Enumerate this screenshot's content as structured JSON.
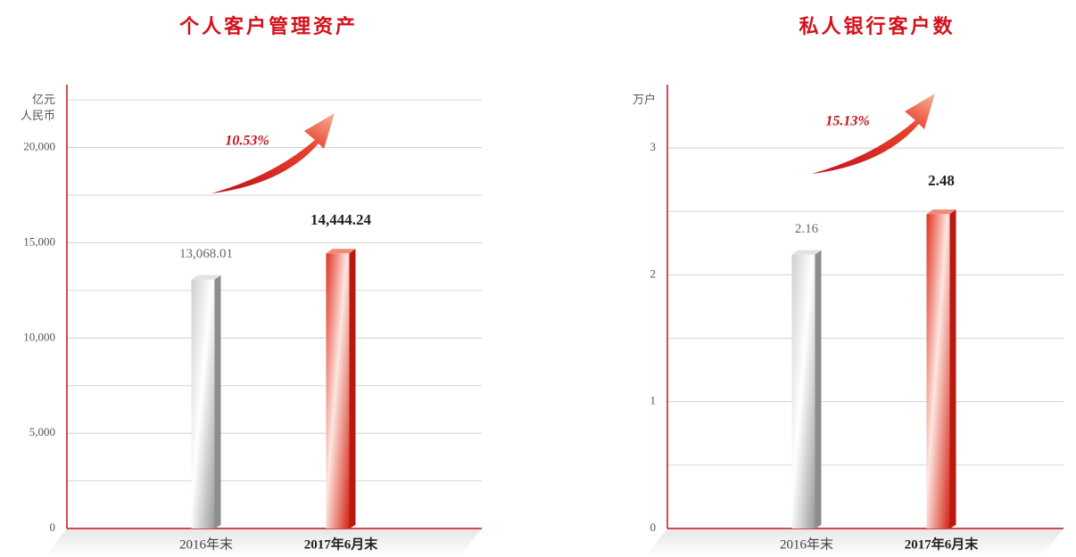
{
  "chart_data": [
    {
      "type": "bar",
      "title": "个人客户管理资产",
      "ylabel": [
        "亿元",
        "人民币"
      ],
      "categories": [
        "2016年末",
        "2017年6月末"
      ],
      "values": [
        13068.01,
        14444.24
      ],
      "value_labels": [
        "13,068.01",
        "14,444.24"
      ],
      "growth_label": "10.53%",
      "colors": [
        "#b8b8b8",
        "#e0301e"
      ],
      "ylim": [
        0,
        23300
      ],
      "yticks": [
        0,
        {
          "value": 5000,
          "label": "5,000"
        },
        {
          "value": 10000,
          "label": "10,000"
        },
        {
          "value": 15000,
          "label": "15,000"
        },
        {
          "value": 20000,
          "label": "20,000"
        }
      ],
      "minor_yticks": [
        2500,
        7500,
        12500,
        17500,
        22500
      ],
      "grid": true
    },
    {
      "type": "bar",
      "title": "私人银行客户数",
      "ylabel": [
        "万户"
      ],
      "categories": [
        "2016年末",
        "2017年6月末"
      ],
      "values": [
        2.16,
        2.48
      ],
      "growth_label": "15.13%",
      "colors": [
        "#b8b8b8",
        "#e0301e"
      ],
      "ylim": [
        0,
        3.5
      ],
      "yticks": [
        0,
        1,
        2,
        3
      ],
      "minor_yticks": [
        0.5,
        1.5,
        2.5
      ],
      "grid": true
    }
  ]
}
